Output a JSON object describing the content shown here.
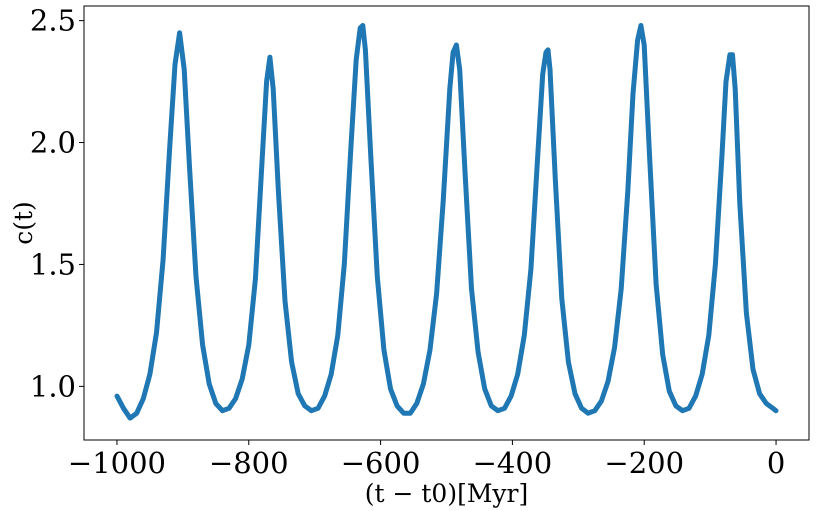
{
  "chart_data": {
    "type": "line",
    "title": "",
    "xlabel": "(t − t0)[Myr]",
    "ylabel": "c(t)",
    "xlim": [
      -1050,
      50
    ],
    "ylim": [
      0.78,
      2.56
    ],
    "grid": false,
    "xticks": [
      -1000,
      -800,
      -600,
      -400,
      -200,
      0
    ],
    "xtick_labels": [
      "−1000",
      "−800",
      "−600",
      "−400",
      "−200",
      "0"
    ],
    "yticks": [
      1.0,
      1.5,
      2.0,
      2.5
    ],
    "ytick_labels": [
      "1.0",
      "1.5",
      "2.0",
      "2.5"
    ],
    "line_color": "#1f77b4",
    "peaks": [
      {
        "t": -905,
        "c": 2.45
      },
      {
        "t": -768,
        "c": 2.35
      },
      {
        "t": -627,
        "c": 2.48
      },
      {
        "t": -485,
        "c": 2.4
      },
      {
        "t": -346,
        "c": 2.38
      },
      {
        "t": -205,
        "c": 2.48
      },
      {
        "t": -66,
        "c": 2.36
      }
    ],
    "series": [
      {
        "x": [
          -1000,
          -990,
          -980,
          -970,
          -960,
          -950,
          -940,
          -930,
          -920,
          -912,
          -905,
          -898,
          -890,
          -880,
          -870,
          -860,
          -850,
          -840,
          -830,
          -820,
          -810,
          -800,
          -790,
          -780,
          -773,
          -768,
          -763,
          -755,
          -745,
          -735,
          -725,
          -715,
          -705,
          -695,
          -685,
          -675,
          -665,
          -655,
          -645,
          -637,
          -631,
          -627,
          -623,
          -615,
          -605,
          -595,
          -585,
          -575,
          -565,
          -555,
          -545,
          -535,
          -525,
          -515,
          -505,
          -495,
          -490,
          -485,
          -480,
          -472,
          -462,
          -452,
          -442,
          -432,
          -422,
          -412,
          -402,
          -392,
          -382,
          -372,
          -362,
          -354,
          -349,
          -346,
          -343,
          -335,
          -325,
          -315,
          -305,
          -295,
          -285,
          -275,
          -265,
          -255,
          -245,
          -235,
          -225,
          -217,
          -210,
          -205,
          -200,
          -192,
          -182,
          -172,
          -162,
          -152,
          -142,
          -132,
          -122,
          -112,
          -102,
          -92,
          -82,
          -76,
          -70,
          -66,
          -62,
          -55,
          -45,
          -35,
          -25,
          -15,
          -5,
          0
        ],
        "y": [
          0.96,
          0.91,
          0.87,
          0.89,
          0.95,
          1.05,
          1.22,
          1.52,
          1.98,
          2.32,
          2.45,
          2.3,
          1.9,
          1.45,
          1.17,
          1.01,
          0.93,
          0.9,
          0.91,
          0.95,
          1.03,
          1.17,
          1.44,
          1.92,
          2.25,
          2.35,
          2.22,
          1.8,
          1.35,
          1.1,
          0.97,
          0.92,
          0.9,
          0.91,
          0.96,
          1.05,
          1.21,
          1.5,
          1.98,
          2.34,
          2.47,
          2.48,
          2.38,
          1.95,
          1.45,
          1.15,
          0.99,
          0.92,
          0.89,
          0.89,
          0.93,
          1.01,
          1.15,
          1.38,
          1.76,
          2.22,
          2.37,
          2.4,
          2.3,
          1.88,
          1.4,
          1.14,
          0.99,
          0.92,
          0.9,
          0.91,
          0.96,
          1.05,
          1.21,
          1.48,
          1.93,
          2.28,
          2.37,
          2.38,
          2.3,
          1.85,
          1.36,
          1.1,
          0.97,
          0.91,
          0.89,
          0.9,
          0.94,
          1.02,
          1.16,
          1.4,
          1.8,
          2.2,
          2.42,
          2.48,
          2.4,
          1.95,
          1.42,
          1.13,
          0.98,
          0.92,
          0.9,
          0.91,
          0.96,
          1.05,
          1.21,
          1.5,
          1.95,
          2.25,
          2.36,
          2.36,
          2.22,
          1.75,
          1.3,
          1.07,
          0.97,
          0.93,
          0.91,
          0.9
        ]
      }
    ]
  }
}
